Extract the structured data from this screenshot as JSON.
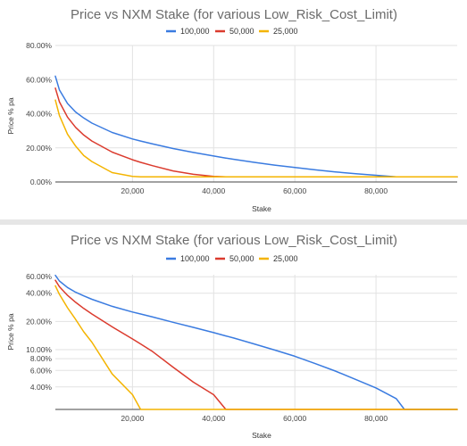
{
  "colors": {
    "series_100000": "#3a7be0",
    "series_50000": "#db3b2e",
    "series_25000": "#f4b400"
  },
  "chart_data": [
    {
      "type": "line",
      "title": "Price vs NXM Stake (for various Low_Risk_Cost_Limit)",
      "xlabel": "Stake",
      "ylabel": "Price % pa",
      "y_scale": "linear",
      "xlim": [
        1000,
        100000
      ],
      "ylim": [
        0,
        80
      ],
      "x_ticks": [
        20000,
        40000,
        60000,
        80000
      ],
      "x_tick_labels": [
        "20,000",
        "40,000",
        "60,000",
        "80,000"
      ],
      "y_ticks": [
        0,
        20,
        40,
        60,
        80
      ],
      "y_tick_labels": [
        "0.00%",
        "20.00%",
        "40.00%",
        "60.00%",
        "80.00%"
      ],
      "legend_position": "top",
      "grid": true,
      "x": [
        1000,
        2000,
        4000,
        6000,
        8000,
        10000,
        15000,
        20000,
        22000,
        25000,
        30000,
        35000,
        40000,
        43000,
        45000,
        50000,
        55000,
        60000,
        65000,
        70000,
        75000,
        80000,
        85000,
        87000,
        90000,
        95000,
        100000
      ],
      "series": [
        {
          "name": "100,000",
          "values": [
            62,
            54,
            46,
            41,
            37.5,
            34.5,
            29,
            25.2,
            24,
            22.3,
            19.6,
            17.3,
            15.2,
            14,
            13.3,
            11.5,
            9.9,
            8.5,
            7.1,
            5.9,
            4.8,
            3.9,
            3,
            3,
            3,
            3,
            3
          ]
        },
        {
          "name": "50,000",
          "values": [
            55,
            47,
            38,
            32,
            27.5,
            24,
            17.5,
            13,
            11.5,
            9.5,
            6.5,
            4.5,
            3.3,
            3,
            3,
            3,
            3,
            3,
            3,
            3,
            3,
            3,
            3,
            3,
            3,
            3,
            3
          ]
        },
        {
          "name": "25,000",
          "values": [
            48,
            39,
            28,
            21,
            15.5,
            12,
            5.5,
            3.3,
            3,
            3,
            3,
            3,
            3,
            3,
            3,
            3,
            3,
            3,
            3,
            3,
            3,
            3,
            3,
            3,
            3,
            3,
            3
          ]
        }
      ]
    },
    {
      "type": "line",
      "title": "Price vs NXM Stake (for various Low_Risk_Cost_Limit)",
      "xlabel": "Stake",
      "ylabel": "Price % pa",
      "y_scale": "log",
      "xlim": [
        1000,
        100000
      ],
      "ylim": [
        2.3,
        63
      ],
      "x_ticks": [
        20000,
        40000,
        60000,
        80000
      ],
      "x_tick_labels": [
        "20,000",
        "40,000",
        "60,000",
        "80,000"
      ],
      "y_ticks": [
        4,
        6,
        8,
        10,
        20,
        40,
        60
      ],
      "y_tick_labels": [
        "4.00%",
        "6.00%",
        "8.00%",
        "10.00%",
        "20.00%",
        "40.00%",
        "60.00%"
      ],
      "legend_position": "top",
      "grid": true,
      "x": [
        1000,
        2000,
        4000,
        6000,
        8000,
        10000,
        15000,
        20000,
        22000,
        25000,
        30000,
        35000,
        40000,
        43000,
        45000,
        50000,
        55000,
        60000,
        65000,
        70000,
        75000,
        80000,
        85000,
        87000,
        90000,
        95000,
        100000
      ],
      "series": [
        {
          "name": "100,000",
          "values": [
            62,
            54,
            46,
            41,
            37.5,
            34.5,
            29,
            25.2,
            24,
            22.3,
            19.6,
            17.3,
            15.2,
            14,
            13.3,
            11.5,
            9.9,
            8.5,
            7.1,
            5.9,
            4.8,
            3.9,
            3,
            2.3,
            2.3,
            2.3,
            2.3
          ]
        },
        {
          "name": "50,000",
          "values": [
            55,
            47,
            38,
            32,
            27.5,
            24,
            17.5,
            13,
            11.5,
            9.5,
            6.5,
            4.5,
            3.3,
            2.3,
            2.3,
            2.3,
            2.3,
            2.3,
            2.3,
            2.3,
            2.3,
            2.3,
            2.3,
            2.3,
            2.3,
            2.3,
            2.3
          ]
        },
        {
          "name": "25,000",
          "values": [
            48,
            39,
            28,
            21,
            15.5,
            12,
            5.5,
            3.3,
            2.3,
            2.3,
            2.3,
            2.3,
            2.3,
            2.3,
            2.3,
            2.3,
            2.3,
            2.3,
            2.3,
            2.3,
            2.3,
            2.3,
            2.3,
            2.3,
            2.3,
            2.3,
            2.3
          ]
        }
      ]
    }
  ]
}
